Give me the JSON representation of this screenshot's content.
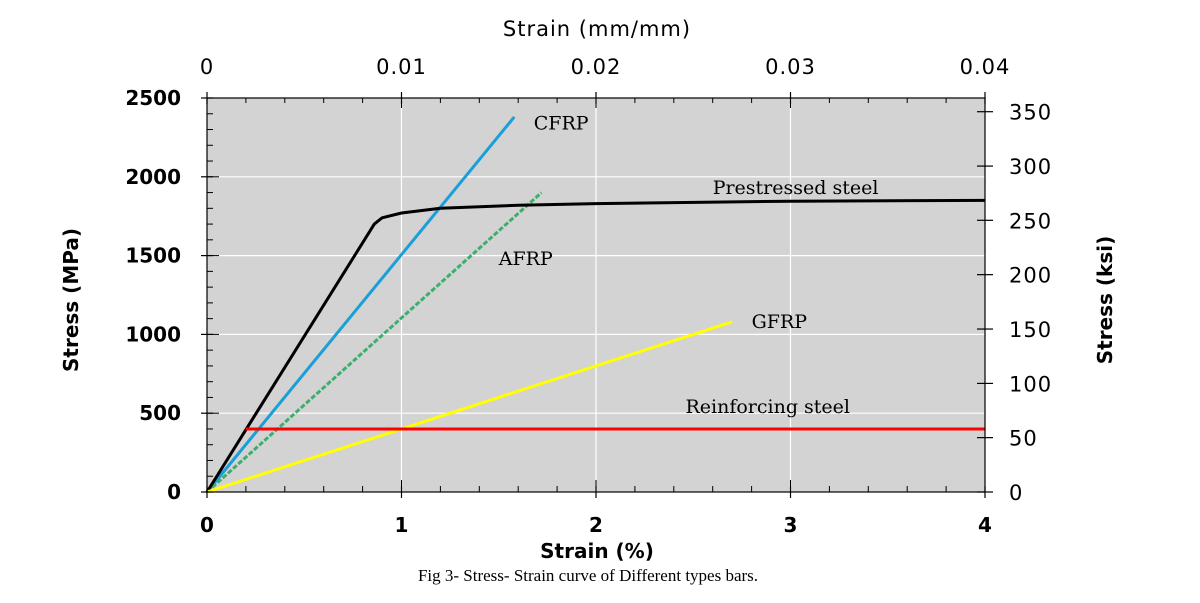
{
  "chart_data": {
    "type": "line",
    "caption": "Fig 3-  Stress- Strain curve of Different types bars.",
    "xlabel": "Strain (%)",
    "x2label": "Strain (mm/mm)",
    "ylabel": "Stress (MPa)",
    "y2label": "Stress (ksi)",
    "xlim": [
      0,
      4
    ],
    "ylim": [
      0,
      2500
    ],
    "x2lim": [
      0,
      0.04
    ],
    "y2lim": [
      0,
      2500
    ],
    "xticks": [
      "0",
      "1",
      "2",
      "3",
      "4"
    ],
    "yticks": [
      "0",
      "500",
      "1000",
      "1500",
      "2000",
      "2500"
    ],
    "x2ticks": [
      "0",
      "0.01",
      "0.02",
      "0.03",
      "0.04"
    ],
    "y2ticks": [
      {
        "label": "0",
        "mpa": 0
      },
      {
        "label": "50",
        "mpa": 345
      },
      {
        "label": "100",
        "mpa": 689
      },
      {
        "label": "150",
        "mpa": 1034
      },
      {
        "label": "200",
        "mpa": 1379
      },
      {
        "label": "250",
        "mpa": 1724
      },
      {
        "label": "300",
        "mpa": 2068
      },
      {
        "label": "350",
        "mpa": 2413
      }
    ],
    "grid": true,
    "plot_background": "#d3d3d3",
    "series": [
      {
        "name": "CFRP",
        "color": "#1a9fd8",
        "x": [
          0,
          1.58
        ],
        "y": [
          0,
          2380
        ]
      },
      {
        "name": "AFRP",
        "color": "#3caf6e",
        "dashed": true,
        "x": [
          0,
          1.72
        ],
        "y": [
          0,
          1900
        ]
      },
      {
        "name": "Prestressed steel",
        "color": "#000000",
        "x": [
          0,
          0.86,
          0.9,
          1.0,
          1.2,
          1.6,
          2.0,
          3.0,
          4.0
        ],
        "y": [
          0,
          1700,
          1740,
          1770,
          1800,
          1820,
          1830,
          1845,
          1850
        ]
      },
      {
        "name": "GFRP",
        "color": "#ffff00",
        "x": [
          0,
          2.7
        ],
        "y": [
          0,
          1080
        ]
      },
      {
        "name": "Reinforcing steel",
        "color": "#ff0000",
        "x": [
          0.2,
          4.0
        ],
        "y": [
          400,
          400
        ]
      }
    ],
    "annotations": [
      {
        "text": "CFRP",
        "x": 1.68,
        "y": 2300
      },
      {
        "text": "AFRP",
        "x": 1.5,
        "y": 1440
      },
      {
        "text": "Prestressed steel",
        "x": 2.6,
        "y": 1890
      },
      {
        "text": "GFRP",
        "x": 2.8,
        "y": 1040
      },
      {
        "text": "Reinforcing steel",
        "x": 2.46,
        "y": 500
      }
    ]
  }
}
